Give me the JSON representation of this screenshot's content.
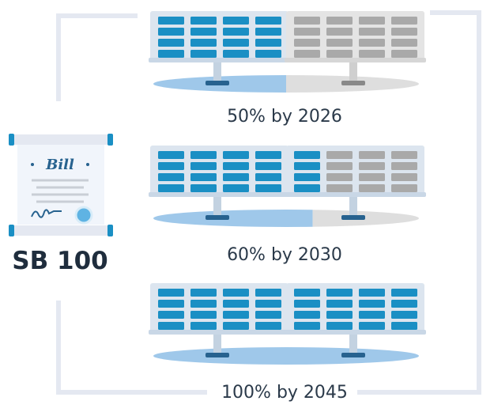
{
  "colors": {
    "frame": "#e4e8f1",
    "panel_blue": "#1a8fc4",
    "panel_gray": "#a9a9a9",
    "frame_blue": "#dce5ef",
    "frame_gray": "#e4e4e4",
    "stand_blue": "#27628f",
    "stand_gray": "#898989",
    "shadow_blue": "#9fc8ea",
    "shadow_gray": "#dedede",
    "text": "#2b3a4a"
  },
  "bill": {
    "title": "Bill",
    "label": "SB 100",
    "icon": "scroll-icon"
  },
  "milestones": [
    {
      "label": "50% by 2026",
      "percent": 50
    },
    {
      "label": "60% by 2030",
      "percent": 60
    },
    {
      "label": "100% by 2045",
      "percent": 100
    }
  ]
}
